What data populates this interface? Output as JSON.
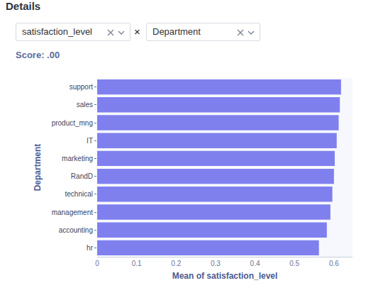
{
  "page": {
    "heading": "Details",
    "selectors": [
      "satisfaction_level",
      "Department"
    ],
    "separator": "×",
    "score": "Score: .00"
  },
  "chart_data": {
    "type": "bar",
    "orientation": "horizontal",
    "x_label": "Mean of satisfaction_level",
    "y_label": "Department",
    "categories": [
      "support",
      "sales",
      "product_mng",
      "IT",
      "marketing",
      "RandD",
      "technical",
      "management",
      "accounting",
      "hr"
    ],
    "values": [
      0.618,
      0.615,
      0.612,
      0.607,
      0.602,
      0.6,
      0.596,
      0.591,
      0.582,
      0.562
    ],
    "color": "#7f80ee",
    "xlim": [
      0,
      0.647
    ],
    "xticks": [
      0,
      0.1,
      0.2,
      0.3,
      0.4,
      0.5,
      0.6
    ],
    "grid": false
  }
}
